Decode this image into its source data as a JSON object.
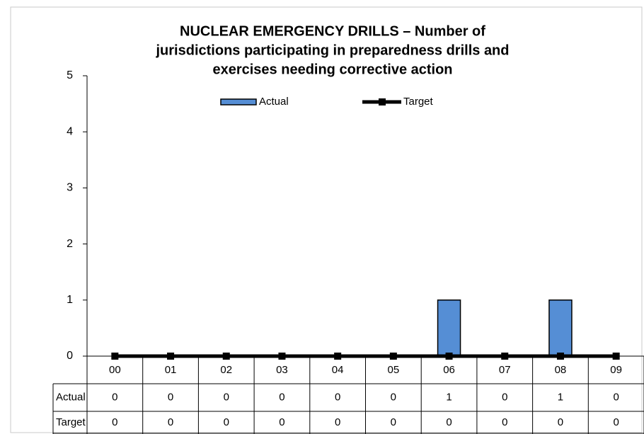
{
  "chart_data": {
    "type": "bar",
    "title_lines": [
      "NUCLEAR EMERGENCY DRILLS –  Number of",
      "jurisdictions participating in preparedness drills and",
      "exercises needing corrective action"
    ],
    "categories": [
      "00",
      "01",
      "02",
      "03",
      "04",
      "05",
      "06",
      "07",
      "08",
      "09"
    ],
    "series": [
      {
        "name": "Actual",
        "type": "bar",
        "color": "#558ed5",
        "values": [
          0,
          0,
          0,
          0,
          0,
          0,
          1,
          0,
          1,
          0
        ]
      },
      {
        "name": "Target",
        "type": "line",
        "color": "#000000",
        "values": [
          0,
          0,
          0,
          0,
          0,
          0,
          0,
          0,
          0,
          0
        ]
      }
    ],
    "ylim": [
      0,
      5
    ],
    "yticks": [
      0,
      1,
      2,
      3,
      4,
      5
    ],
    "grid": false,
    "legend": "top"
  }
}
